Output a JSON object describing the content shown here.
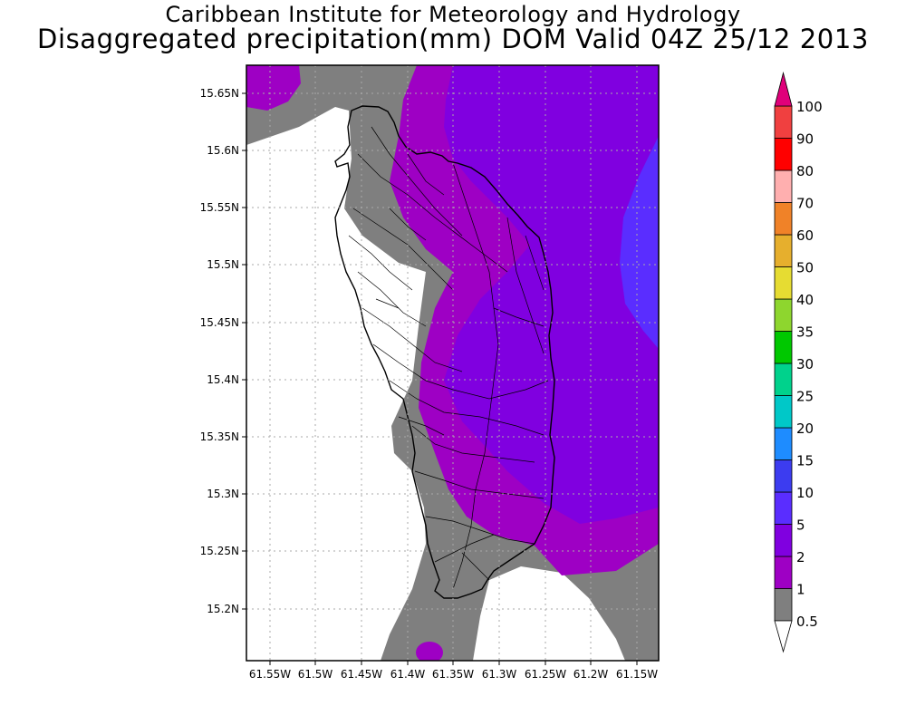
{
  "title": {
    "line1": "Caribbean Institute for Meteorology and Hydrology",
    "line2": "Disaggregated precipitation(mm) DOM Valid 04Z 25/12 2013"
  },
  "map": {
    "lon_ticks": [
      "61.55W",
      "61.5W",
      "61.45W",
      "61.4W",
      "61.35W",
      "61.3W",
      "61.25W",
      "61.2W",
      "61.15W"
    ],
    "lat_ticks": [
      "15.65N",
      "15.6N",
      "15.55N",
      "15.5N",
      "15.45N",
      "15.4N",
      "15.35N",
      "15.3N",
      "15.25N",
      "15.2N"
    ],
    "lon_range": [
      -61.57,
      -61.14
    ],
    "lat_range": [
      15.155,
      15.675
    ],
    "grid": true,
    "island": "Dominica"
  },
  "colorbar": {
    "levels": [
      "0.5",
      "1",
      "2",
      "5",
      "10",
      "15",
      "20",
      "25",
      "30",
      "35",
      "40",
      "50",
      "60",
      "70",
      "80",
      "90",
      "100"
    ],
    "colors": [
      "#7f7f7f",
      "#9e00c4",
      "#8000e0",
      "#5a2dff",
      "#3c3cf0",
      "#1e8cff",
      "#00c8c8",
      "#00d28c",
      "#00c800",
      "#8ed62e",
      "#e6dc32",
      "#e6af2d",
      "#f08228",
      "#ffafaf",
      "#ff0000",
      "#f04040",
      "#e0007a"
    ],
    "below_color": "#ffffff"
  },
  "fields": {
    "colors": {
      "water_white": "#ffffff",
      "grey": "#7f7f7f",
      "violet": "#9e00c4",
      "purple": "#8000e0",
      "blue": "#5a2dff"
    }
  }
}
